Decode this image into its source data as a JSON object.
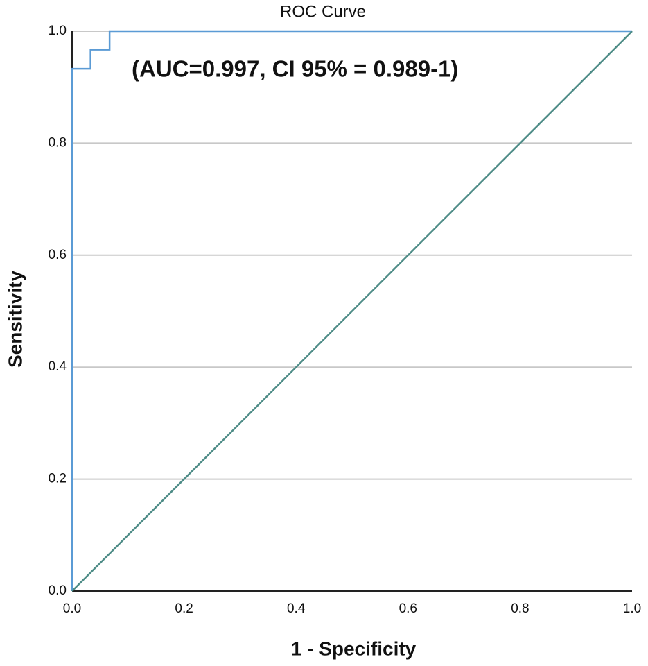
{
  "chart_data": {
    "type": "line",
    "title": "ROC Curve",
    "annotation": "(AUC=0.997, CI 95% = 0.989-1)",
    "x_label": "1 - Specificity",
    "y_label": "Sensitivity",
    "xlim": [
      0,
      1
    ],
    "ylim": [
      0,
      1
    ],
    "xticks": [
      {
        "value": 0,
        "label": "0.0"
      },
      0.2,
      0.4,
      0.6,
      0.8,
      {
        "value": 1,
        "label": "1.0"
      }
    ],
    "yticks": [
      {
        "value": 0,
        "label": "0.0"
      },
      0.2,
      0.4,
      0.6,
      0.8,
      {
        "value": 1,
        "label": "1.0"
      }
    ],
    "grid": true,
    "series": [
      {
        "color": "#5b9bd5",
        "x": [
          0,
          0,
          0.033,
          0.033,
          0.067,
          0.067,
          1
        ],
        "values": [
          0,
          0.933,
          0.933,
          0.967,
          0.967,
          1,
          1
        ]
      },
      {
        "color": "#4e8c87",
        "x": [
          0,
          1
        ],
        "values": [
          0,
          1
        ]
      }
    ]
  }
}
